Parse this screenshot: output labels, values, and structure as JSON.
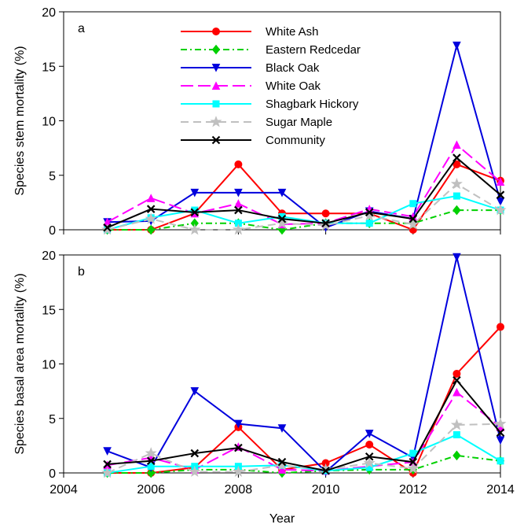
{
  "chart_data": [
    {
      "type": "line",
      "panel_label": "a",
      "ylabel": "Species stem mortality (%)",
      "xlabel": "",
      "xlim": [
        2004,
        2014
      ],
      "ylim": [
        0,
        20
      ],
      "xticks": [
        2004,
        2006,
        2008,
        2010,
        2012,
        2014
      ],
      "yticks": [
        0,
        5,
        10,
        15,
        20
      ],
      "x": [
        2005,
        2006,
        2007,
        2008,
        2009,
        2010,
        2011,
        2012,
        2013,
        2014
      ],
      "legend_position": "top-center",
      "series": [
        {
          "name": "White Ash",
          "color": "#ff0000",
          "dash": "solid",
          "marker": "circle",
          "values": [
            0,
            0,
            1.5,
            6.0,
            1.5,
            1.5,
            1.5,
            0,
            6.0,
            4.5
          ]
        },
        {
          "name": "Eastern Redcedar",
          "color": "#00d000",
          "dash": "dashdot",
          "marker": "diamond",
          "values": [
            0,
            0,
            0.6,
            0.6,
            0,
            0.6,
            0.6,
            0.6,
            1.8,
            1.8
          ]
        },
        {
          "name": "Black Oak",
          "color": "#0000dd",
          "dash": "solid",
          "marker": "triangle-down",
          "values": [
            0.7,
            0.8,
            3.4,
            3.4,
            3.4,
            0.2,
            1.7,
            1.0,
            16.9,
            2.6
          ]
        },
        {
          "name": "White Oak",
          "color": "#ff00ff",
          "dash": "longdash",
          "marker": "triangle-up",
          "values": [
            0.7,
            2.9,
            1.5,
            2.4,
            0.5,
            0.6,
            1.9,
            1.2,
            7.8,
            4.4
          ]
        },
        {
          "name": "Shagbark Hickory",
          "color": "#00ffff",
          "dash": "solid",
          "marker": "square",
          "values": [
            0,
            1.1,
            1.8,
            0.6,
            1.2,
            0.6,
            0.6,
            2.4,
            3.1,
            1.8
          ]
        },
        {
          "name": "Sugar Maple",
          "color": "#c0c0c0",
          "dash": "dash",
          "marker": "star",
          "values": [
            0,
            1.0,
            0,
            0,
            0.6,
            0.4,
            1.3,
            0.5,
            4.2,
            1.8
          ]
        },
        {
          "name": "Community",
          "color": "#000000",
          "dash": "solid",
          "marker": "x",
          "values": [
            0.2,
            1.9,
            1.6,
            1.8,
            1.0,
            0.6,
            1.6,
            1.0,
            6.6,
            3.2
          ]
        }
      ]
    },
    {
      "type": "line",
      "panel_label": "b",
      "ylabel": "Species basal area mortality (%)",
      "xlabel": "Year",
      "xlim": [
        2004,
        2014
      ],
      "ylim": [
        0,
        20
      ],
      "xticks": [
        2004,
        2006,
        2008,
        2010,
        2012,
        2014
      ],
      "yticks": [
        0,
        5,
        10,
        15,
        20
      ],
      "x": [
        2005,
        2006,
        2007,
        2008,
        2009,
        2010,
        2011,
        2012,
        2013,
        2014
      ],
      "series": [
        {
          "name": "White Ash",
          "color": "#ff0000",
          "dash": "solid",
          "marker": "circle",
          "values": [
            0,
            0,
            0.5,
            4.2,
            0.3,
            0.9,
            2.6,
            0,
            9.1,
            13.4
          ]
        },
        {
          "name": "Eastern Redcedar",
          "color": "#00d000",
          "dash": "dashdot",
          "marker": "diamond",
          "values": [
            0,
            0,
            0.3,
            0.3,
            0,
            0.2,
            0.3,
            0.3,
            1.6,
            1.1
          ]
        },
        {
          "name": "Black Oak",
          "color": "#0000dd",
          "dash": "solid",
          "marker": "triangle-down",
          "values": [
            2.0,
            0.5,
            7.5,
            4.5,
            4.1,
            0.1,
            3.6,
            1.4,
            19.8,
            3.0
          ]
        },
        {
          "name": "White Oak",
          "color": "#ff00ff",
          "dash": "longdash",
          "marker": "triangle-up",
          "values": [
            0.7,
            1.4,
            0.3,
            2.4,
            0.3,
            0.2,
            0.6,
            1.0,
            7.4,
            4.2
          ]
        },
        {
          "name": "Shagbark Hickory",
          "color": "#00ffff",
          "dash": "solid",
          "marker": "square",
          "values": [
            0,
            0.6,
            0.6,
            0.6,
            0.7,
            0.2,
            0.5,
            1.8,
            3.5,
            1.1
          ]
        },
        {
          "name": "Sugar Maple",
          "color": "#c0c0c0",
          "dash": "dash",
          "marker": "star",
          "values": [
            0,
            1.8,
            0.1,
            0.1,
            0.7,
            0.3,
            0.9,
            0.4,
            4.4,
            4.5
          ]
        },
        {
          "name": "Community",
          "color": "#000000",
          "dash": "solid",
          "marker": "x",
          "values": [
            0.8,
            1.1,
            1.8,
            2.3,
            1.0,
            0.2,
            1.5,
            1.0,
            8.5,
            3.7
          ]
        }
      ]
    }
  ]
}
